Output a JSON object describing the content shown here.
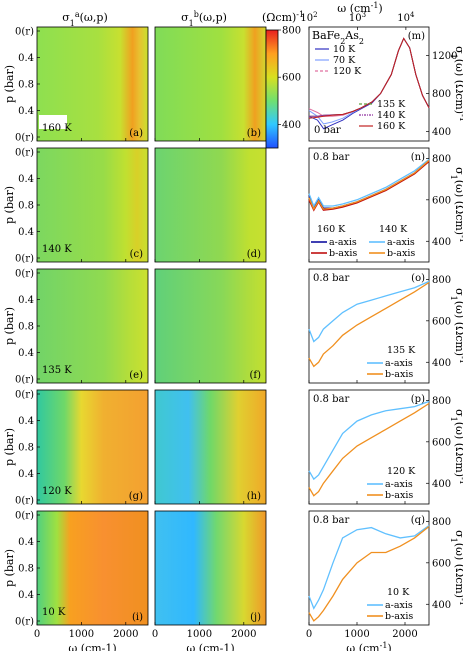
{
  "headers": {
    "col_a": "σ1a(ω,p)",
    "col_b": "σ1b(ω,p)",
    "colorbar_unit": "(Ωcm)-1",
    "top_axis_label": "ω (cm-1)"
  },
  "colorbar": {
    "ticks": [
      "800",
      "600",
      "400"
    ],
    "colors": [
      "#2050ff",
      "#30c8ff",
      "#70e070",
      "#d8e020",
      "#ffa020",
      "#e82020"
    ]
  },
  "chart_data": [
    {
      "type": "heatmap",
      "description_role": "map panels",
      "xlabel": "ω (cm-1)",
      "ylabel": "p (bar)",
      "x_ticks": [
        "0",
        "1000",
        "2000"
      ],
      "y_ticks": [
        "0(r)",
        "0.4",
        "0.8",
        "0.4",
        "0(r)"
      ],
      "xlim": [
        0,
        2500
      ],
      "clim": [
        300,
        800
      ],
      "rows": [
        {
          "temperature": "160 K",
          "labels": [
            "(a)",
            "(b)"
          ]
        },
        {
          "temperature": "140 K",
          "labels": [
            "(c)",
            "(d)"
          ]
        },
        {
          "temperature": "135 K",
          "labels": [
            "(e)",
            "(f)"
          ]
        },
        {
          "temperature": "120 K",
          "labels": [
            "(g)",
            "(h)"
          ]
        },
        {
          "temperature": "10 K",
          "labels": [
            "(i)",
            "(j)"
          ]
        }
      ]
    },
    {
      "type": "line",
      "panel": "(m)",
      "title": "BaFe2As2",
      "pressure": "0 bar",
      "xscale": "log",
      "xlim": [
        100,
        30000
      ],
      "ylim": [
        300,
        1500
      ],
      "top_ticks": [
        "10^2",
        "10^3",
        "10^4"
      ],
      "y_ticks": [
        "400",
        "800",
        "1200"
      ],
      "ylabel": "σ1(ω) (Ωcm)-1",
      "series": [
        {
          "name": "10 K",
          "color": "#3030c0",
          "x": [
            100,
            150,
            200,
            300,
            500,
            800,
            1200,
            2000,
            3000,
            5000,
            7000,
            9000,
            12000,
            16000,
            22000,
            30000
          ],
          "y": [
            560,
            520,
            430,
            470,
            520,
            590,
            640,
            700,
            800,
            1000,
            1250,
            1380,
            1280,
            1000,
            780,
            650
          ]
        },
        {
          "name": "70 K",
          "color": "#80a0ff",
          "x": [
            100,
            150,
            200,
            300,
            500,
            800,
            1200,
            2000,
            3000,
            5000,
            7000,
            9000,
            12000,
            16000,
            22000,
            30000
          ],
          "y": [
            620,
            560,
            480,
            500,
            540,
            600,
            650,
            710,
            800,
            1000,
            1250,
            1380,
            1280,
            1000,
            780,
            650
          ]
        },
        {
          "name": "120 K",
          "color": "#e070a0",
          "x": [
            100,
            150,
            200,
            300,
            500,
            800,
            1200,
            2000,
            3000,
            5000,
            7000,
            9000,
            12000,
            16000,
            22000,
            30000
          ],
          "y": [
            640,
            600,
            560,
            560,
            570,
            610,
            650,
            710,
            800,
            1000,
            1250,
            1380,
            1280,
            1000,
            780,
            650
          ]
        },
        {
          "name": "135 K",
          "color": "#60a040",
          "x": [
            100,
            150,
            200,
            300,
            500,
            800,
            1200,
            2000,
            3000,
            5000,
            7000,
            9000,
            12000,
            16000,
            22000,
            30000
          ],
          "y": [
            560,
            560,
            570,
            575,
            580,
            610,
            650,
            710,
            800,
            1000,
            1250,
            1380,
            1280,
            1000,
            780,
            650
          ]
        },
        {
          "name": "140 K",
          "color": "#9030a0",
          "x": [
            100,
            150,
            200,
            300,
            500,
            800,
            1200,
            2000,
            3000,
            5000,
            7000,
            9000,
            12000,
            16000,
            22000,
            30000
          ],
          "y": [
            560,
            560,
            570,
            575,
            580,
            610,
            650,
            710,
            800,
            1000,
            1250,
            1380,
            1280,
            1000,
            780,
            650
          ]
        },
        {
          "name": "160 K",
          "color": "#c02020",
          "x": [
            100,
            150,
            200,
            300,
            500,
            800,
            1200,
            2000,
            3000,
            5000,
            7000,
            9000,
            12000,
            16000,
            22000,
            30000
          ],
          "y": [
            540,
            550,
            560,
            570,
            580,
            610,
            650,
            710,
            800,
            1000,
            1250,
            1380,
            1280,
            1000,
            780,
            650
          ]
        }
      ]
    },
    {
      "type": "line",
      "panel": "(n)",
      "pressure": "0.8 bar",
      "xlim": [
        0,
        2500
      ],
      "ylim": [
        300,
        850
      ],
      "y_ticks": [
        "400",
        "600",
        "800"
      ],
      "ylabel": "σ1(ω) (Ωcm)-1",
      "temps": [
        "160 K",
        "140 K"
      ],
      "series": [
        {
          "name": "a-axis",
          "color": "#1010a0",
          "x": [
            0,
            100,
            200,
            300,
            500,
            700,
            1000,
            1300,
            1600,
            1900,
            2200,
            2500
          ],
          "y": [
            620,
            560,
            600,
            560,
            560,
            570,
            590,
            620,
            650,
            690,
            730,
            790
          ]
        },
        {
          "name": "b-axis",
          "color": "#c01010",
          "x": [
            0,
            100,
            200,
            300,
            500,
            700,
            1000,
            1300,
            1600,
            1900,
            2200,
            2500
          ],
          "y": [
            600,
            550,
            590,
            550,
            555,
            565,
            585,
            615,
            645,
            685,
            725,
            785
          ]
        },
        {
          "name": "a-axis",
          "color": "#60c0ff",
          "x": [
            0,
            100,
            200,
            300,
            500,
            700,
            1000,
            1300,
            1600,
            1900,
            2200,
            2500
          ],
          "y": [
            630,
            570,
            610,
            570,
            570,
            580,
            600,
            630,
            660,
            700,
            740,
            795
          ]
        },
        {
          "name": "b-axis",
          "color": "#f09020",
          "x": [
            0,
            100,
            200,
            300,
            500,
            700,
            1000,
            1300,
            1600,
            1900,
            2200,
            2500
          ],
          "y": [
            610,
            555,
            595,
            555,
            560,
            570,
            590,
            620,
            650,
            690,
            730,
            790
          ]
        }
      ]
    },
    {
      "type": "line",
      "panel": "(o)",
      "pressure": "0.8 bar",
      "xlim": [
        0,
        2500
      ],
      "ylim": [
        300,
        850
      ],
      "y_ticks": [
        "400",
        "600",
        "800"
      ],
      "ylabel": "σ1(ω) (Ωcm)-1",
      "temperature": "135 K",
      "series": [
        {
          "name": "a-axis",
          "color": "#60c0ff",
          "x": [
            0,
            100,
            200,
            300,
            500,
            700,
            1000,
            1300,
            1600,
            1900,
            2200,
            2500
          ],
          "y": [
            560,
            500,
            520,
            560,
            600,
            640,
            680,
            700,
            720,
            740,
            760,
            790
          ]
        },
        {
          "name": "b-axis",
          "color": "#f09020",
          "x": [
            0,
            100,
            200,
            300,
            500,
            700,
            1000,
            1300,
            1600,
            1900,
            2200,
            2500
          ],
          "y": [
            420,
            380,
            400,
            440,
            480,
            530,
            580,
            620,
            660,
            700,
            740,
            785
          ]
        }
      ]
    },
    {
      "type": "line",
      "panel": "(p)",
      "pressure": "0.8 bar",
      "xlim": [
        0,
        2500
      ],
      "ylim": [
        300,
        850
      ],
      "y_ticks": [
        "400",
        "600",
        "800"
      ],
      "ylabel": "σ1(ω) (Ωcm)-1",
      "temperature": "120 K",
      "series": [
        {
          "name": "a-axis",
          "color": "#60c0ff",
          "x": [
            0,
            100,
            200,
            300,
            500,
            700,
            1000,
            1300,
            1600,
            1900,
            2200,
            2500
          ],
          "y": [
            460,
            420,
            440,
            480,
            560,
            640,
            700,
            730,
            750,
            760,
            770,
            795
          ]
        },
        {
          "name": "b-axis",
          "color": "#f09020",
          "x": [
            0,
            100,
            200,
            300,
            500,
            700,
            1000,
            1300,
            1600,
            1900,
            2200,
            2500
          ],
          "y": [
            380,
            340,
            360,
            400,
            460,
            520,
            580,
            620,
            660,
            700,
            740,
            785
          ]
        }
      ]
    },
    {
      "type": "line",
      "panel": "(q)",
      "pressure": "0.8 bar",
      "xlim": [
        0,
        2500
      ],
      "ylim": [
        300,
        850
      ],
      "y_ticks": [
        "400",
        "600",
        "800"
      ],
      "ylabel": "σ1(ω) (Ωcm)-1",
      "xlabel": "ω (cm-1)",
      "x_ticks": [
        "0",
        "1000",
        "2000"
      ],
      "temperature": "10 K",
      "series": [
        {
          "name": "a-axis",
          "color": "#60c0ff",
          "x": [
            0,
            100,
            200,
            300,
            500,
            700,
            1000,
            1300,
            1600,
            1900,
            2200,
            2500
          ],
          "y": [
            440,
            380,
            420,
            470,
            600,
            720,
            760,
            770,
            740,
            720,
            730,
            780
          ]
        },
        {
          "name": "b-axis",
          "color": "#f09020",
          "x": [
            0,
            100,
            200,
            300,
            500,
            700,
            1000,
            1300,
            1600,
            1900,
            2200,
            2500
          ],
          "y": [
            360,
            320,
            340,
            370,
            440,
            520,
            600,
            650,
            650,
            680,
            720,
            775
          ]
        }
      ]
    }
  ]
}
